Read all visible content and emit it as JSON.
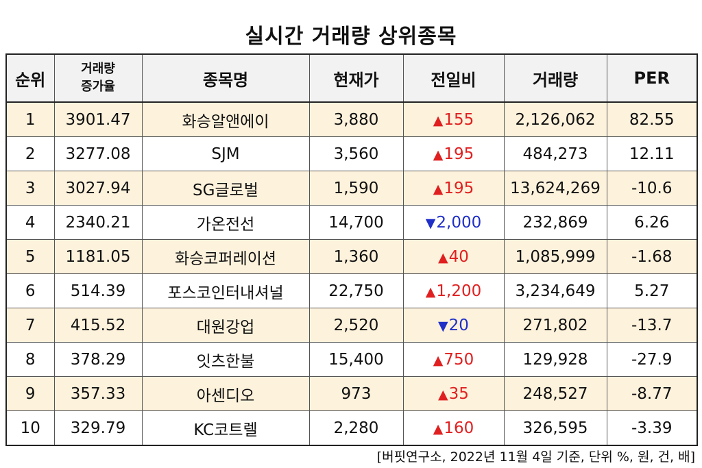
{
  "title": "실시간 거래량 상위종목",
  "headers": {
    "rank": "순위",
    "volume_increase_line1": "거래량",
    "volume_increase_line2": "증가율",
    "name": "종목명",
    "price": "현재가",
    "change": "전일비",
    "volume": "거래량",
    "per": "PER"
  },
  "rows": [
    {
      "rank": "1",
      "increase": "3901.47",
      "name": "화승알앤에이",
      "price": "3,880",
      "dir": "up",
      "arrow": "▲",
      "change": "155",
      "volume": "2,126,062",
      "per": "82.55"
    },
    {
      "rank": "2",
      "increase": "3277.08",
      "name": "SJM",
      "price": "3,560",
      "dir": "up",
      "arrow": "▲",
      "change": "195",
      "volume": "484,273",
      "per": "12.11"
    },
    {
      "rank": "3",
      "increase": "3027.94",
      "name": "SG글로벌",
      "price": "1,590",
      "dir": "up",
      "arrow": "▲",
      "change": "195",
      "volume": "13,624,269",
      "per": "-10.6"
    },
    {
      "rank": "4",
      "increase": "2340.21",
      "name": "가온전선",
      "price": "14,700",
      "dir": "down",
      "arrow": "▼",
      "change": "2,000",
      "volume": "232,869",
      "per": "6.26"
    },
    {
      "rank": "5",
      "increase": "1181.05",
      "name": "화승코퍼레이션",
      "price": "1,360",
      "dir": "up",
      "arrow": "▲",
      "change": "40",
      "volume": "1,085,999",
      "per": "-1.68"
    },
    {
      "rank": "6",
      "increase": "514.39",
      "name": "포스코인터내셔널",
      "price": "22,750",
      "dir": "up",
      "arrow": "▲",
      "change": "1,200",
      "volume": "3,234,649",
      "per": "5.27"
    },
    {
      "rank": "7",
      "increase": "415.52",
      "name": "대원강업",
      "price": "2,520",
      "dir": "down",
      "arrow": "▼",
      "change": "20",
      "volume": "271,802",
      "per": "-13.7"
    },
    {
      "rank": "8",
      "increase": "378.29",
      "name": "잇츠한불",
      "price": "15,400",
      "dir": "up",
      "arrow": "▲",
      "change": "750",
      "volume": "129,928",
      "per": "-27.9"
    },
    {
      "rank": "9",
      "increase": "357.33",
      "name": "아센디오",
      "price": "973",
      "dir": "up",
      "arrow": "▲",
      "change": "35",
      "volume": "248,527",
      "per": "-8.77"
    },
    {
      "rank": "10",
      "increase": "329.79",
      "name": "KC코트렐",
      "price": "2,280",
      "dir": "up",
      "arrow": "▲",
      "change": "160",
      "volume": "326,595",
      "per": "-3.39"
    }
  ],
  "colors": {
    "up": "#e02020",
    "down": "#1f2fc8",
    "row_highlight": "#fdf2dc"
  },
  "note": "[버핏연구소, 2022년 11월 4일 기준, 단위 %, 원, 건, 배]"
}
